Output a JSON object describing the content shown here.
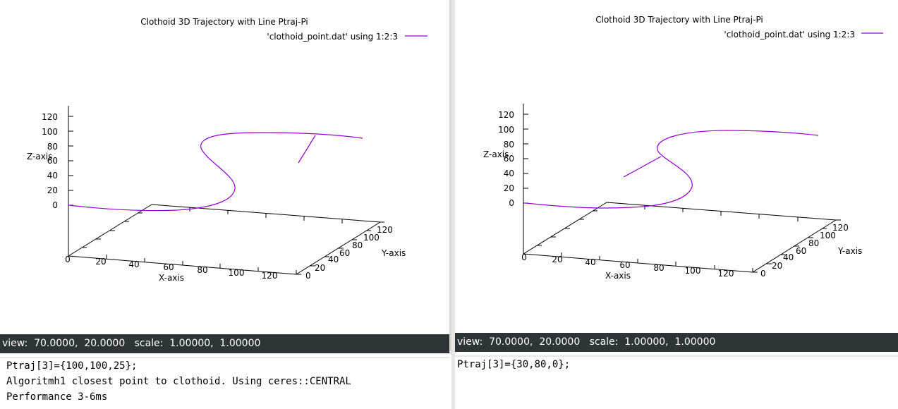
{
  "left": {
    "title": "Clothoid 3D Trajectory with Line Ptraj-Pi",
    "legend": "'clothoid_point.dat' using 1:2:3",
    "status": "view:  70.0000,  20.0000   scale:  1.00000,  1.00000",
    "console": [
      "Ptraj[3]={100,100,25};",
      "Algoritmh1 closest point to clothoid. Using ceres::CENTRAL",
      "Performance 3-6ms"
    ]
  },
  "right": {
    "title": "Clothoid 3D Trajectory with Line Ptraj-Pi",
    "legend": "'clothoid_point.dat' using 1:2:3",
    "status": "view:  70.0000,  20.0000   scale:  1.00000,  1.00000",
    "console": [
      "Ptraj[3]={30,80,0};"
    ]
  },
  "axes": {
    "z_label": "Z-axis",
    "x_label": "X-axis",
    "y_label": "Y-axis",
    "z_ticks": [
      "0",
      "20",
      "40",
      "60",
      "80",
      "100",
      "120"
    ],
    "x_ticks": [
      "0",
      "20",
      "40",
      "60",
      "80",
      "100",
      "120"
    ],
    "y_ticks": [
      "0",
      "20",
      "40",
      "60",
      "80",
      "100",
      "120"
    ]
  },
  "colors": {
    "curve": "#9400d3",
    "statusbar": "#2f3437"
  },
  "chart_data": [
    {
      "type": "line",
      "title": "Clothoid 3D Trajectory with Line Ptraj-Pi",
      "series": [
        {
          "name": "'clothoid_point.dat' using 1:2:3"
        }
      ],
      "xlabel": "X-axis",
      "ylabel": "Y-axis",
      "zlabel": "Z-axis",
      "xlim": [
        0,
        120
      ],
      "ylim": [
        0,
        120
      ],
      "zlim": [
        0,
        120
      ],
      "view": [
        70,
        20
      ],
      "scale": [
        1,
        1
      ]
    },
    {
      "type": "line",
      "title": "Clothoid 3D Trajectory with Line Ptraj-Pi",
      "series": [
        {
          "name": "'clothoid_point.dat' using 1:2:3"
        }
      ],
      "xlabel": "X-axis",
      "ylabel": "Y-axis",
      "zlabel": "Z-axis",
      "xlim": [
        0,
        120
      ],
      "ylim": [
        0,
        120
      ],
      "zlim": [
        0,
        120
      ],
      "view": [
        70,
        20
      ],
      "scale": [
        1,
        1
      ]
    }
  ]
}
